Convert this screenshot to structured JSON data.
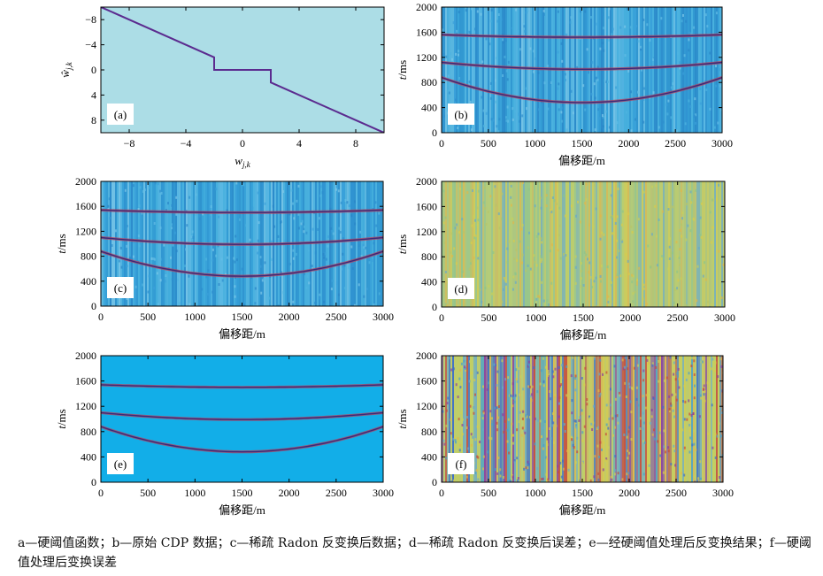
{
  "chart_data": [
    {
      "panel": "a",
      "type": "line",
      "label": "(a)",
      "xlabel": "w_{j,k}",
      "ylabel": "ŵ_{j,k}",
      "xlim": [
        -10,
        10
      ],
      "ylim": [
        -10,
        10
      ],
      "xticks": [
        -8,
        -4,
        0,
        4,
        8
      ],
      "yticks": [
        8,
        4,
        0,
        -4,
        -8
      ],
      "background": "#acdde6",
      "line_color": "#5b2b8f",
      "threshold": 2,
      "series": [
        {
          "x": [
            -10,
            -2,
            -2,
            2,
            2,
            10
          ],
          "y": [
            -10,
            -2,
            0,
            0,
            2,
            10
          ]
        }
      ]
    },
    {
      "panel": "b",
      "type": "heatmap",
      "label": "(b)",
      "xlabel": "偏移距/m",
      "ylabel": "t/ms",
      "xlim": [
        0,
        3000
      ],
      "ylim": [
        2000,
        0
      ],
      "xticks": [
        0,
        500,
        1000,
        1500,
        2000,
        2500,
        3000
      ],
      "yticks": [
        0,
        400,
        800,
        1200,
        1600,
        2000
      ],
      "palette": "blue",
      "noise": "strong",
      "events": [
        {
          "apex_x": 1500,
          "apex_t": 480,
          "edge_t": 880
        },
        {
          "apex_x": 1500,
          "apex_t": 1010,
          "edge_t": 1120
        },
        {
          "apex_x": 1500,
          "apex_t": 1520,
          "edge_t": 1560
        }
      ]
    },
    {
      "panel": "c",
      "type": "heatmap",
      "label": "(c)",
      "xlabel": "偏移距/m",
      "ylabel": "t/ms",
      "xlim": [
        0,
        3000
      ],
      "ylim": [
        2000,
        0
      ],
      "xticks": [
        0,
        500,
        1000,
        1500,
        2000,
        2500,
        3000
      ],
      "yticks": [
        0,
        400,
        800,
        1200,
        1600,
        2000
      ],
      "palette": "blue",
      "noise": "medium",
      "events": [
        {
          "apex_x": 1500,
          "apex_t": 480,
          "edge_t": 880
        },
        {
          "apex_x": 1500,
          "apex_t": 990,
          "edge_t": 1100
        },
        {
          "apex_x": 1500,
          "apex_t": 1500,
          "edge_t": 1540
        }
      ]
    },
    {
      "panel": "d",
      "type": "heatmap",
      "label": "(d)",
      "xlabel": "偏移距/m",
      "ylabel": "t/ms",
      "xlim": [
        0,
        3000
      ],
      "ylim": [
        2000,
        0
      ],
      "xticks": [
        0,
        500,
        1000,
        1500,
        2000,
        2500,
        3000
      ],
      "yticks": [
        0,
        400,
        800,
        1200,
        1600,
        2000
      ],
      "palette": "error",
      "noise": "medium",
      "events": []
    },
    {
      "panel": "e",
      "type": "heatmap",
      "label": "(e)",
      "xlabel": "偏移距/m",
      "ylabel": "t/ms",
      "xlim": [
        0,
        3000
      ],
      "ylim": [
        2000,
        0
      ],
      "xticks": [
        0,
        500,
        1000,
        1500,
        2000,
        2500,
        3000
      ],
      "yticks": [
        0,
        400,
        800,
        1200,
        1600,
        2000
      ],
      "palette": "blue",
      "noise": "none",
      "events": [
        {
          "apex_x": 1500,
          "apex_t": 480,
          "edge_t": 880
        },
        {
          "apex_x": 1500,
          "apex_t": 990,
          "edge_t": 1100
        },
        {
          "apex_x": 1500,
          "apex_t": 1500,
          "edge_t": 1540
        }
      ]
    },
    {
      "panel": "f",
      "type": "heatmap",
      "label": "(f)",
      "xlabel": "偏移距/m",
      "ylabel": "t/ms",
      "xlim": [
        0,
        3000
      ],
      "ylim": [
        2000,
        0
      ],
      "xticks": [
        0,
        500,
        1000,
        1500,
        2000,
        2500,
        3000
      ],
      "yticks": [
        0,
        400,
        800,
        1200,
        1600,
        2000
      ],
      "palette": "error",
      "noise": "strong",
      "events": []
    }
  ],
  "caption": {
    "line1": "a—硬阈值函数；b—原始 CDP 数据；c—稀疏 Radon 反变换后数据；d—稀疏 Radon 反变换后误差；e—经硬阈值处理后反变换结果；f—硬阈",
    "line2": "值处理后变换误差"
  }
}
